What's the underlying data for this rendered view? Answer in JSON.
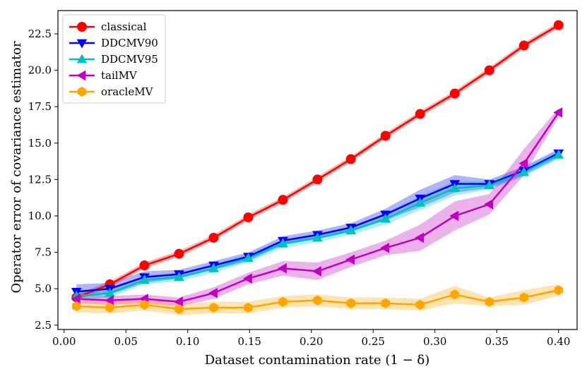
{
  "chart_data": {
    "type": "line",
    "title": "",
    "xlabel": "Dataset contamination rate (1 − δ)",
    "ylabel": "Operator error of covariance estimator",
    "xlim": [
      -0.005,
      0.415
    ],
    "ylim": [
      2.2,
      24.1
    ],
    "xticks": [
      0.0,
      0.05,
      0.1,
      0.15,
      0.2,
      0.25,
      0.3,
      0.35,
      0.4
    ],
    "xtick_labels": [
      "0.00",
      "0.05",
      "0.10",
      "0.15",
      "0.20",
      "0.25",
      "0.30",
      "0.35",
      "0.40"
    ],
    "yticks": [
      2.5,
      5.0,
      7.5,
      10.0,
      12.5,
      15.0,
      17.5,
      20.0,
      22.5
    ],
    "ytick_labels": [
      "2.5",
      "5.0",
      "7.5",
      "10.0",
      "12.5",
      "15.0",
      "17.5",
      "20.0",
      "22.5"
    ],
    "legend_position": "upper-left",
    "x": [
      0.01,
      0.037,
      0.065,
      0.093,
      0.121,
      0.149,
      0.177,
      0.205,
      0.232,
      0.26,
      0.288,
      0.316,
      0.344,
      0.372,
      0.4
    ],
    "series": [
      {
        "name": "classical",
        "color": "#ff0000",
        "marker": "circle",
        "values": [
          4.4,
          5.3,
          6.6,
          7.4,
          8.5,
          9.9,
          11.1,
          12.5,
          13.9,
          15.5,
          17.0,
          18.4,
          20.0,
          21.7,
          23.1
        ],
        "lower": [
          4.2,
          5.1,
          6.4,
          7.2,
          8.3,
          9.7,
          10.9,
          12.3,
          13.7,
          15.3,
          16.8,
          18.2,
          19.8,
          21.5,
          22.9
        ],
        "upper": [
          4.6,
          5.5,
          6.8,
          7.6,
          8.7,
          10.1,
          11.3,
          12.7,
          14.1,
          15.7,
          17.2,
          18.6,
          20.2,
          21.9,
          23.3
        ]
      },
      {
        "name": "DDCMV90",
        "color": "#0000ff",
        "marker": "triangle-down",
        "values": [
          4.8,
          5.0,
          5.8,
          6.0,
          6.6,
          7.2,
          8.3,
          8.7,
          9.2,
          10.1,
          11.2,
          12.2,
          12.2,
          13.1,
          14.3
        ],
        "lower": [
          4.4,
          4.6,
          5.4,
          5.7,
          6.3,
          6.9,
          8.0,
          8.4,
          8.9,
          9.7,
          10.6,
          11.6,
          11.9,
          12.8,
          14.0
        ],
        "upper": [
          5.3,
          5.4,
          6.2,
          6.3,
          6.9,
          7.5,
          8.6,
          9.0,
          9.5,
          10.5,
          11.8,
          12.8,
          12.5,
          13.4,
          14.6
        ]
      },
      {
        "name": "DDCMV95",
        "color": "#00bfbf",
        "marker": "triangle-up",
        "values": [
          4.5,
          4.7,
          5.6,
          5.8,
          6.4,
          7.1,
          8.1,
          8.5,
          9.0,
          9.8,
          10.9,
          11.9,
          12.1,
          13.0,
          14.2
        ],
        "lower": [
          4.2,
          4.4,
          5.3,
          5.5,
          6.1,
          6.8,
          7.8,
          8.2,
          8.7,
          9.4,
          10.4,
          11.4,
          11.8,
          12.7,
          13.9
        ],
        "upper": [
          4.8,
          5.0,
          5.9,
          6.1,
          6.7,
          7.4,
          8.4,
          8.8,
          9.3,
          10.2,
          11.4,
          12.4,
          12.4,
          13.3,
          14.5
        ]
      },
      {
        "name": "tailMV",
        "color": "#bf00bf",
        "marker": "triangle-left",
        "values": [
          4.3,
          4.2,
          4.3,
          4.1,
          4.7,
          5.7,
          6.4,
          6.2,
          7.0,
          7.8,
          8.5,
          10.0,
          10.8,
          13.6,
          17.1
        ],
        "lower": [
          4.0,
          3.9,
          4.0,
          3.8,
          4.3,
          5.3,
          5.9,
          5.6,
          6.5,
          7.3,
          7.6,
          9.0,
          10.1,
          12.8,
          16.8
        ],
        "upper": [
          4.6,
          4.5,
          4.6,
          4.4,
          5.1,
          6.1,
          6.9,
          6.8,
          7.5,
          8.3,
          9.4,
          11.0,
          11.5,
          14.6,
          17.4
        ]
      },
      {
        "name": "oracleMV",
        "color": "#ffa500",
        "marker": "hexagon",
        "values": [
          3.8,
          3.7,
          3.9,
          3.6,
          3.7,
          3.7,
          4.1,
          4.2,
          4.0,
          4.0,
          3.9,
          4.6,
          4.1,
          4.4,
          4.9
        ],
        "lower": [
          3.4,
          3.3,
          3.5,
          3.2,
          3.3,
          3.3,
          3.7,
          3.8,
          3.6,
          3.6,
          3.5,
          4.0,
          3.8,
          3.9,
          4.5
        ],
        "upper": [
          4.2,
          4.1,
          4.3,
          4.0,
          4.1,
          4.1,
          4.5,
          4.6,
          4.4,
          4.4,
          4.3,
          5.2,
          4.4,
          4.9,
          5.3
        ]
      }
    ]
  }
}
